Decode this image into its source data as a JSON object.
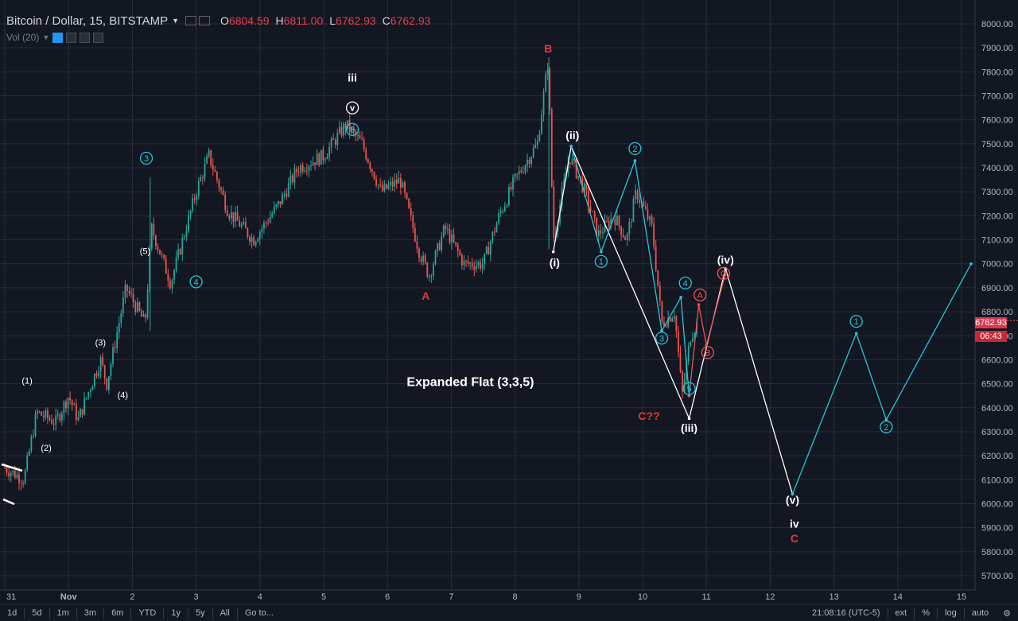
{
  "header": {
    "symbol": "Bitcoin / Dollar, 15, BITSTAMP",
    "open_label": "O",
    "open": "6804.59",
    "high_label": "H",
    "high": "6811.00",
    "low_label": "L",
    "low": "6762.93",
    "close_label": "C",
    "close": "6762.93",
    "volume_label": "Vol (20)"
  },
  "price_tags": {
    "last": "6762.93",
    "countdown": "06:43"
  },
  "toolbar": {
    "ranges": [
      "1d",
      "5d",
      "1m",
      "3m",
      "6m",
      "YTD",
      "1y",
      "5y",
      "All"
    ],
    "goto": "Go to...",
    "time": "21:08:16 (UTC-5)",
    "ext": "ext",
    "percent": "%",
    "log": "log",
    "auto": "auto"
  },
  "colors": {
    "background": "#131722",
    "grid": "#2a2e39",
    "up": "#26a69a",
    "down": "#ef5350",
    "wave_white": "#ffffff",
    "wave_cyan": "#26c6da",
    "wave_red": "#ef5350",
    "label_red": "#e53935"
  },
  "chart_data": {
    "type": "candlestick",
    "symbol": "BTCUSD",
    "exchange": "BITSTAMP",
    "interval": "15",
    "x_ticks": [
      "31",
      "Nov",
      "2",
      "3",
      "4",
      "5",
      "6",
      "7",
      "8",
      "9",
      "10",
      "11",
      "12",
      "13",
      "14",
      "15"
    ],
    "y_ticks": [
      5700,
      5800,
      5900,
      6000,
      6100,
      6200,
      6300,
      6400,
      6500,
      6600,
      6700,
      6800,
      6900,
      7000,
      7100,
      7200,
      7300,
      7400,
      7500,
      7600,
      7700,
      7800,
      7900,
      8000
    ],
    "ylim": [
      5670,
      8080
    ],
    "grid": true,
    "last_price": 6762.93,
    "price_path": [
      {
        "x": 0.0,
        "y": 6150
      },
      {
        "x": 0.3,
        "y": 6100
      },
      {
        "x": 0.5,
        "y": 6380
      },
      {
        "x": 0.8,
        "y": 6340
      },
      {
        "x": 1.0,
        "y": 6450
      },
      {
        "x": 1.15,
        "y": 6350
      },
      {
        "x": 1.5,
        "y": 6600
      },
      {
        "x": 1.6,
        "y": 6500
      },
      {
        "x": 1.9,
        "y": 6900
      },
      {
        "x": 2.2,
        "y": 6750
      },
      {
        "x": 2.3,
        "y": 7150
      },
      {
        "x": 2.6,
        "y": 6920
      },
      {
        "x": 3.0,
        "y": 7300
      },
      {
        "x": 3.2,
        "y": 7450
      },
      {
        "x": 3.5,
        "y": 7220
      },
      {
        "x": 3.9,
        "y": 7100
      },
      {
        "x": 4.3,
        "y": 7250
      },
      {
        "x": 4.6,
        "y": 7400
      },
      {
        "x": 5.0,
        "y": 7450
      },
      {
        "x": 5.35,
        "y": 7580
      },
      {
        "x": 5.6,
        "y": 7500
      },
      {
        "x": 5.9,
        "y": 7300
      },
      {
        "x": 6.2,
        "y": 7350
      },
      {
        "x": 6.5,
        "y": 7050
      },
      {
        "x": 6.65,
        "y": 6950
      },
      {
        "x": 6.9,
        "y": 7150
      },
      {
        "x": 7.2,
        "y": 7000
      },
      {
        "x": 7.5,
        "y": 7000
      },
      {
        "x": 7.75,
        "y": 7200
      },
      {
        "x": 8.0,
        "y": 7350
      },
      {
        "x": 8.35,
        "y": 7500
      },
      {
        "x": 8.52,
        "y": 7850
      },
      {
        "x": 8.6,
        "y": 7100
      },
      {
        "x": 8.85,
        "y": 7450
      },
      {
        "x": 9.1,
        "y": 7300
      },
      {
        "x": 9.3,
        "y": 7120
      },
      {
        "x": 9.55,
        "y": 7200
      },
      {
        "x": 9.75,
        "y": 7100
      },
      {
        "x": 9.9,
        "y": 7300
      },
      {
        "x": 10.15,
        "y": 7150
      },
      {
        "x": 10.3,
        "y": 6750
      },
      {
        "x": 10.5,
        "y": 6800
      },
      {
        "x": 10.62,
        "y": 6450
      },
      {
        "x": 10.75,
        "y": 6700
      },
      {
        "x": 10.88,
        "y": 6763
      }
    ],
    "projections": [
      {
        "name": "white",
        "points": [
          {
            "x": 8.6,
            "y": 7050
          },
          {
            "x": 8.88,
            "y": 7490
          },
          {
            "x": 10.73,
            "y": 6355
          },
          {
            "x": 11.3,
            "y": 6980
          },
          {
            "x": 12.35,
            "y": 6040
          }
        ]
      },
      {
        "name": "cyan",
        "points": [
          {
            "x": 8.88,
            "y": 7490
          },
          {
            "x": 9.35,
            "y": 7050
          },
          {
            "x": 9.88,
            "y": 7430
          },
          {
            "x": 10.3,
            "y": 6720
          },
          {
            "x": 10.6,
            "y": 6860
          },
          {
            "x": 10.73,
            "y": 6450
          }
        ]
      },
      {
        "name": "red",
        "points": [
          {
            "x": 10.73,
            "y": 6450
          },
          {
            "x": 10.88,
            "y": 6830
          },
          {
            "x": 11.0,
            "y": 6660
          },
          {
            "x": 11.3,
            "y": 6960
          }
        ]
      },
      {
        "name": "cyan",
        "points": [
          {
            "x": 12.35,
            "y": 6040
          },
          {
            "x": 13.35,
            "y": 6710
          },
          {
            "x": 13.82,
            "y": 6350
          },
          {
            "x": 15.15,
            "y": 7000
          }
        ]
      }
    ],
    "wave_labels": [
      {
        "text": "(1)",
        "x": 0.35,
        "y": 6500,
        "style": "white"
      },
      {
        "text": "(2)",
        "x": 0.65,
        "y": 6220,
        "style": "white"
      },
      {
        "text": "(3)",
        "x": 1.5,
        "y": 6660,
        "style": "white"
      },
      {
        "text": "(4)",
        "x": 1.85,
        "y": 6440,
        "style": "white"
      },
      {
        "text": "(5)",
        "x": 2.2,
        "y": 7040,
        "style": "white"
      },
      {
        "text": "3",
        "x": 2.22,
        "y": 7440,
        "style": "cyan-circle"
      },
      {
        "text": "4",
        "x": 3.0,
        "y": 6925,
        "style": "cyan-circle"
      },
      {
        "text": "iii",
        "x": 5.45,
        "y": 7760,
        "style": "white-bold"
      },
      {
        "text": "v",
        "x": 5.45,
        "y": 7650,
        "style": "white-circle"
      },
      {
        "text": "5",
        "x": 5.45,
        "y": 7560,
        "style": "cyan-circle"
      },
      {
        "text": "A",
        "x": 6.6,
        "y": 6850,
        "style": "red-bold"
      },
      {
        "text": "B",
        "x": 8.52,
        "y": 7880,
        "style": "red-bold"
      },
      {
        "text": "(ii)",
        "x": 8.9,
        "y": 7520,
        "style": "white-bold"
      },
      {
        "text": "(i)",
        "x": 8.62,
        "y": 6990,
        "style": "white-bold"
      },
      {
        "text": "1",
        "x": 9.35,
        "y": 7010,
        "style": "cyan-circle"
      },
      {
        "text": "2",
        "x": 9.88,
        "y": 7480,
        "style": "cyan-circle"
      },
      {
        "text": "3",
        "x": 10.3,
        "y": 6690,
        "style": "cyan-circle"
      },
      {
        "text": "4",
        "x": 10.67,
        "y": 6920,
        "style": "cyan-circle"
      },
      {
        "text": "5",
        "x": 10.73,
        "y": 6480,
        "style": "cyan-circle"
      },
      {
        "text": "A",
        "x": 10.9,
        "y": 6870,
        "style": "red-circle"
      },
      {
        "text": "B",
        "x": 11.02,
        "y": 6630,
        "style": "red-circle"
      },
      {
        "text": "C",
        "x": 11.27,
        "y": 6960,
        "style": "red-circle"
      },
      {
        "text": "(iv)",
        "x": 11.3,
        "y": 7000,
        "style": "white-bold"
      },
      {
        "text": "(iii)",
        "x": 10.73,
        "y": 6300,
        "style": "white-bold"
      },
      {
        "text": "C??",
        "x": 10.1,
        "y": 6350,
        "style": "red-bold"
      },
      {
        "text": "(v)",
        "x": 12.35,
        "y": 6000,
        "style": "white-bold"
      },
      {
        "text": "iv",
        "x": 12.38,
        "y": 5900,
        "style": "white-bold"
      },
      {
        "text": "C",
        "x": 12.38,
        "y": 5840,
        "style": "red-bold"
      },
      {
        "text": "1",
        "x": 13.35,
        "y": 6760,
        "style": "cyan-circle"
      },
      {
        "text": "2",
        "x": 13.82,
        "y": 6320,
        "style": "cyan-circle"
      }
    ],
    "annotations": [
      {
        "text": "Expanded Flat (3,3,5)",
        "x": 7.3,
        "y": 6490
      }
    ]
  }
}
